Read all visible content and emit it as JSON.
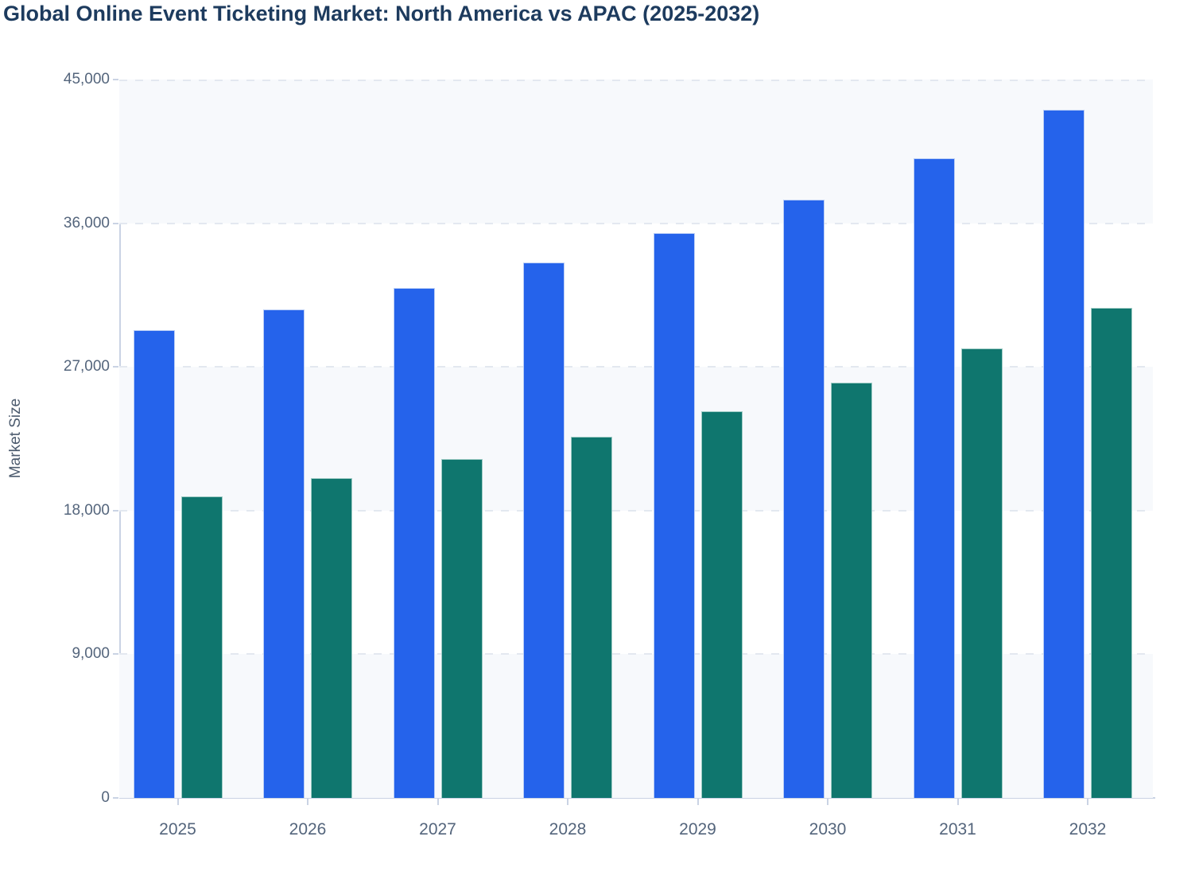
{
  "title": {
    "text": "Global Online Event Ticketing Market: North America vs APAC (2025-2032)",
    "color": "#1d3b5e"
  },
  "chart_data": {
    "type": "bar",
    "title": "Global Online Event Ticketing Market: North America vs APAC (2025-2032)",
    "categories": [
      "2025",
      "2026",
      "2027",
      "2028",
      "2029",
      "2030",
      "2031",
      "2032"
    ],
    "series": [
      {
        "name": "North America",
        "color": "#2563eb",
        "edge_color": "#b9cdf6",
        "values": [
          29300,
          30600,
          31950,
          33550,
          35400,
          37500,
          40050,
          43100
        ]
      },
      {
        "name": "APAC",
        "color": "#0f766e",
        "edge_color": "#9fccc5",
        "values": [
          18900,
          20050,
          21250,
          22650,
          24200,
          26000,
          28150,
          30700
        ]
      }
    ],
    "xlabel": "",
    "ylabel": "Market Size",
    "ylim": [
      0,
      45000
    ],
    "yticks": [
      0,
      9000,
      18000,
      27000,
      36000,
      45000
    ],
    "ytick_labels": [
      "0",
      "9,000",
      "18,000",
      "27,000",
      "36,000",
      "45,000"
    ],
    "grid": "horizontal-dashed",
    "legend": "none",
    "plot_band_color": "#f7f9fc",
    "grid_color": "#e3e8f0",
    "axis_line_color": "#cad3e4",
    "tick_label_color": "#54657c"
  }
}
